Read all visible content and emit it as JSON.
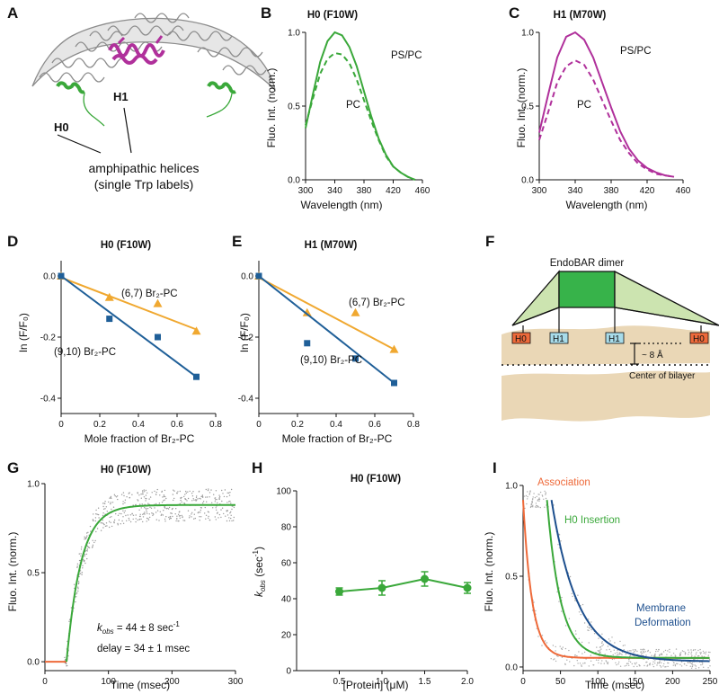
{
  "panels": {
    "A": {
      "letter": "A",
      "h0_label": "H0",
      "h1_label": "H1",
      "caption_line1": "amphipathic helices",
      "caption_line2": "(single Trp labels)"
    },
    "B": {
      "letter": "B"
    },
    "C": {
      "letter": "C"
    },
    "D": {
      "letter": "D"
    },
    "E": {
      "letter": "E"
    },
    "G": {
      "letter": "G"
    },
    "H": {
      "letter": "H"
    },
    "I": {
      "letter": "I"
    },
    "F": {
      "letter": "F",
      "dimer_label": "EndoBAR dimer",
      "helix_labels": [
        "H0",
        "H1",
        "H1",
        "H0"
      ],
      "distance_label": "~ 8 Å",
      "center_label": "Center of bilayer"
    }
  },
  "colors": {
    "green": "#3aa83a",
    "magenta": "#b0309b",
    "orange": "#f0a830",
    "blue": "#1f5f98",
    "red": "#ee6a3a",
    "navy": "#1d4f8e",
    "membrane": "#ead7b6",
    "dimer_light": "#cce4b0",
    "dimer_dark": "#37b34a"
  },
  "chart_data": [
    {
      "id": "B",
      "type": "line",
      "title": "H0 (F10W)",
      "xlabel": "Wavelength (nm)",
      "ylabel": "Fluo. Int. (norm.)",
      "xlim": [
        300,
        460
      ],
      "ylim": [
        0,
        1.0
      ],
      "xticks": [
        300,
        340,
        380,
        420,
        460
      ],
      "yticks": [
        0.0,
        0.5,
        1.0
      ],
      "series": [
        {
          "name": "PS/PC",
          "style": "solid",
          "x": [
            300,
            310,
            320,
            330,
            340,
            350,
            360,
            370,
            380,
            390,
            400,
            410,
            420,
            430,
            440,
            450
          ],
          "y": [
            0.35,
            0.58,
            0.8,
            0.94,
            1.0,
            0.98,
            0.9,
            0.77,
            0.6,
            0.43,
            0.28,
            0.17,
            0.09,
            0.05,
            0.02,
            0.0
          ]
        },
        {
          "name": "PC",
          "style": "dashed",
          "x": [
            300,
            310,
            320,
            330,
            340,
            350,
            360,
            370,
            380,
            390,
            400,
            410,
            420,
            430,
            440,
            450
          ],
          "y": [
            0.37,
            0.55,
            0.72,
            0.82,
            0.86,
            0.85,
            0.79,
            0.68,
            0.54,
            0.4,
            0.27,
            0.16,
            0.09,
            0.05,
            0.02,
            0.0
          ]
        }
      ],
      "annotations": [
        "PS/PC",
        "PC"
      ]
    },
    {
      "id": "C",
      "type": "line",
      "title": "H1 (M70W)",
      "xlabel": "Wavelength (nm)",
      "ylabel": "Fluo. Int. (norm.)",
      "xlim": [
        300,
        460
      ],
      "ylim": [
        0,
        1.0
      ],
      "xticks": [
        300,
        340,
        380,
        420,
        460
      ],
      "yticks": [
        0.0,
        0.5,
        1.0
      ],
      "series": [
        {
          "name": "PS/PC",
          "style": "solid",
          "x": [
            300,
            310,
            320,
            330,
            340,
            350,
            360,
            370,
            380,
            390,
            400,
            410,
            420,
            430,
            440,
            450
          ],
          "y": [
            0.32,
            0.58,
            0.83,
            0.97,
            1.0,
            0.95,
            0.83,
            0.66,
            0.49,
            0.33,
            0.21,
            0.13,
            0.08,
            0.05,
            0.03,
            0.02
          ]
        },
        {
          "name": "PC",
          "style": "dashed",
          "x": [
            300,
            310,
            320,
            330,
            340,
            350,
            360,
            370,
            380,
            390,
            400,
            410,
            420,
            430,
            440,
            450
          ],
          "y": [
            0.27,
            0.46,
            0.66,
            0.77,
            0.81,
            0.78,
            0.68,
            0.54,
            0.4,
            0.27,
            0.18,
            0.11,
            0.07,
            0.04,
            0.03,
            0.02
          ]
        }
      ],
      "annotations": [
        "PS/PC",
        "PC"
      ]
    },
    {
      "id": "D",
      "type": "scatter",
      "title": "H0 (F10W)",
      "xlabel": "Mole fraction of Br₂-PC",
      "ylabel": "ln (F/F₀)",
      "xlim": [
        0,
        0.8
      ],
      "ylim": [
        -0.45,
        0.05
      ],
      "xticks": [
        0,
        0.2,
        0.4,
        0.6,
        0.8
      ],
      "yticks": [
        0.0,
        -0.2,
        -0.4
      ],
      "series": [
        {
          "name": "(6,7) Br₂-PC",
          "marker": "triangle",
          "color": "#f0a830",
          "x": [
            0,
            0.25,
            0.5,
            0.7
          ],
          "y": [
            0.0,
            -0.07,
            -0.09,
            -0.18
          ],
          "fit": [
            [
              0,
              -0.005
            ],
            [
              0.7,
              -0.175
            ]
          ]
        },
        {
          "name": "(9,10) Br₂-PC",
          "marker": "square",
          "color": "#1f5f98",
          "x": [
            0,
            0.25,
            0.5,
            0.7
          ],
          "y": [
            0.0,
            -0.14,
            -0.2,
            -0.33
          ],
          "fit": [
            [
              0,
              0.0
            ],
            [
              0.7,
              -0.33
            ]
          ]
        }
      ]
    },
    {
      "id": "E",
      "type": "scatter",
      "title": "H1 (M70W)",
      "xlabel": "Mole fraction of Br₂-PC",
      "ylabel": "ln (F/F₀)",
      "xlim": [
        0,
        0.8
      ],
      "ylim": [
        -0.45,
        0.05
      ],
      "xticks": [
        0,
        0.2,
        0.4,
        0.6,
        0.8
      ],
      "yticks": [
        0.0,
        -0.2,
        -0.4
      ],
      "series": [
        {
          "name": "(6,7) Br₂-PC",
          "marker": "triangle",
          "color": "#f0a830",
          "x": [
            0,
            0.25,
            0.5,
            0.7
          ],
          "y": [
            0.0,
            -0.12,
            -0.12,
            -0.24
          ],
          "fit": [
            [
              0,
              -0.005
            ],
            [
              0.7,
              -0.24
            ]
          ]
        },
        {
          "name": "(9,10) Br₂-PC",
          "marker": "square",
          "color": "#1f5f98",
          "x": [
            0,
            0.25,
            0.5,
            0.7
          ],
          "y": [
            0.0,
            -0.22,
            -0.27,
            -0.35
          ],
          "fit": [
            [
              0,
              0.0
            ],
            [
              0.7,
              -0.35
            ]
          ]
        }
      ]
    },
    {
      "id": "G",
      "type": "scatter",
      "title": "H0 (F10W)",
      "xlabel": "Time (msec)",
      "ylabel": "Fluo. Int. (norm.)",
      "xlim": [
        0,
        300
      ],
      "ylim": [
        -0.05,
        1.0
      ],
      "xticks": [
        0,
        100,
        200,
        300
      ],
      "yticks": [
        0.0,
        0.5,
        1.0
      ],
      "kobs_value": "= 44 ± 8 sec",
      "kobs_unit": "-1",
      "delay_text": "delay = 34  ± 1 msec",
      "delay_ms": 34,
      "kobs": 44,
      "plateau": 0.88,
      "series": [
        {
          "name": "fit",
          "color": "#3aa83a"
        },
        {
          "name": "pre-delay",
          "color": "#ee6a3a"
        },
        {
          "name": "data",
          "color": "#999999"
        }
      ]
    },
    {
      "id": "H",
      "type": "line",
      "title": "H0 (F10W)",
      "xlabel": "[Protein] (μM)",
      "ylabel": "k",
      "ylabel_sub": "obs",
      "ylabel_unit": "(sec",
      "xlim": [
        0,
        2.0
      ],
      "ylim": [
        0,
        100
      ],
      "xticks": [
        0.5,
        1.0,
        1.5,
        2.0
      ],
      "yticks": [
        0,
        20,
        40,
        60,
        80,
        100
      ],
      "series": [
        {
          "name": "kobs",
          "color": "#3aa83a",
          "x": [
            0.5,
            1.0,
            1.5,
            2.0
          ],
          "y": [
            44,
            46,
            51,
            46
          ],
          "err": [
            2,
            4,
            4,
            3
          ]
        }
      ]
    },
    {
      "id": "I",
      "type": "line",
      "title": "",
      "xlabel": "Time (msec)",
      "ylabel": "Fluo. Int. (norm.)",
      "xlim": [
        0,
        250
      ],
      "ylim": [
        -0.02,
        1.0
      ],
      "xticks": [
        0,
        50,
        100,
        150,
        200,
        250
      ],
      "yticks": [
        0.0,
        0.5,
        1.0
      ],
      "series": [
        {
          "name": "Association",
          "color": "#ee6a3a",
          "delay": 0,
          "tau": 12,
          "offset": 0.05
        },
        {
          "name": "H0 Insertion",
          "color": "#3aa83a",
          "delay": 32,
          "tau": 18,
          "offset": 0.05
        },
        {
          "name": "Membrane",
          "name2": "Deformation",
          "color": "#1d4f8e",
          "delay": 38,
          "tau": 35,
          "offset": 0.03
        }
      ]
    }
  ]
}
